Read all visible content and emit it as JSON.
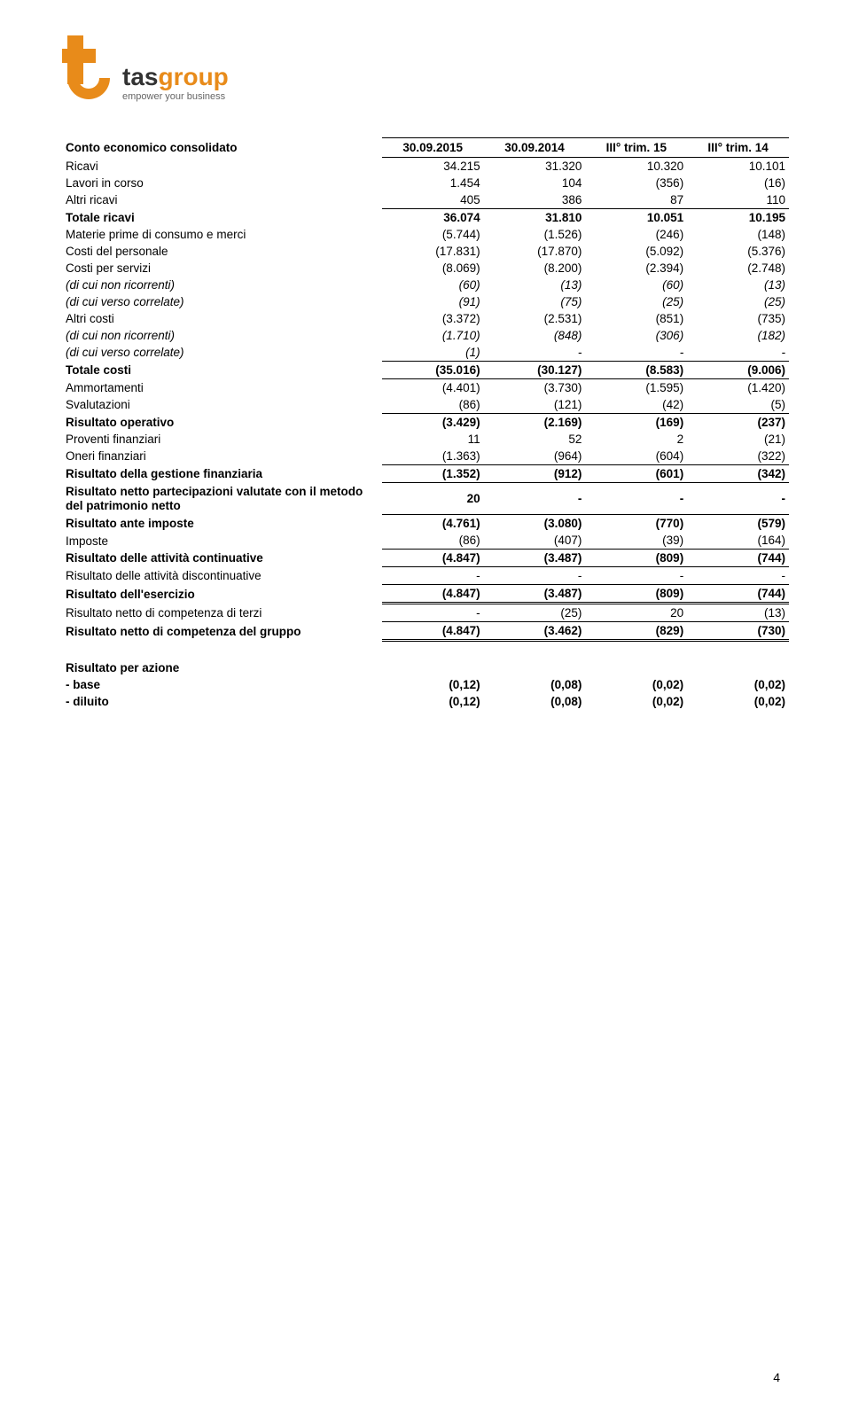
{
  "logo": {
    "name_prefix": "tas",
    "name_suffix": "group",
    "tagline": "empower your business"
  },
  "columns": [
    "30.09.2015",
    "30.09.2014",
    "III° trim. 15",
    "III° trim. 14"
  ],
  "title": "Conto economico consolidato",
  "rows": [
    {
      "label": "Ricavi",
      "v": [
        "34.215",
        "31.320",
        "10.320",
        "10.101"
      ],
      "cls": ""
    },
    {
      "label": "Lavori in corso",
      "v": [
        "1.454",
        "104",
        "(356)",
        "(16)"
      ],
      "cls": ""
    },
    {
      "label": "Altri ricavi",
      "v": [
        "405",
        "386",
        "87",
        "110"
      ],
      "cls": "u1"
    },
    {
      "label": "Totale ricavi",
      "v": [
        "36.074",
        "31.810",
        "10.051",
        "10.195"
      ],
      "cls": "bold"
    },
    {
      "label": "Materie prime di consumo e merci",
      "v": [
        "(5.744)",
        "(1.526)",
        "(246)",
        "(148)"
      ],
      "cls": ""
    },
    {
      "label": "Costi del personale",
      "v": [
        "(17.831)",
        "(17.870)",
        "(5.092)",
        "(5.376)"
      ],
      "cls": ""
    },
    {
      "label": "Costi per servizi",
      "v": [
        "(8.069)",
        "(8.200)",
        "(2.394)",
        "(2.748)"
      ],
      "cls": ""
    },
    {
      "label": "(di cui non ricorrenti)",
      "v": [
        "(60)",
        "(13)",
        "(60)",
        "(13)"
      ],
      "cls": "italic"
    },
    {
      "label": "(di cui verso correlate)",
      "v": [
        "(91)",
        "(75)",
        "(25)",
        "(25)"
      ],
      "cls": "italic"
    },
    {
      "label": "Altri costi",
      "v": [
        "(3.372)",
        "(2.531)",
        "(851)",
        "(735)"
      ],
      "cls": ""
    },
    {
      "label": "(di cui non ricorrenti)",
      "v": [
        "(1.710)",
        "(848)",
        "(306)",
        "(182)"
      ],
      "cls": "italic"
    },
    {
      "label": "(di cui verso correlate)",
      "v": [
        "(1)",
        "-",
        "-",
        "-"
      ],
      "cls": "italic u1"
    },
    {
      "label": "Totale costi",
      "v": [
        "(35.016)",
        "(30.127)",
        "(8.583)",
        "(9.006)"
      ],
      "cls": "bold u1"
    },
    {
      "label": "Ammortamenti",
      "v": [
        "(4.401)",
        "(3.730)",
        "(1.595)",
        "(1.420)"
      ],
      "cls": ""
    },
    {
      "label": "Svalutazioni",
      "v": [
        "(86)",
        "(121)",
        "(42)",
        "(5)"
      ],
      "cls": "u1"
    },
    {
      "label": "Risultato operativo",
      "v": [
        "(3.429)",
        "(2.169)",
        "(169)",
        "(237)"
      ],
      "cls": "bold"
    },
    {
      "label": "Proventi finanziari",
      "v": [
        "11",
        "52",
        "2",
        "(21)"
      ],
      "cls": ""
    },
    {
      "label": "Oneri finanziari",
      "v": [
        "(1.363)",
        "(964)",
        "(604)",
        "(322)"
      ],
      "cls": "u1"
    },
    {
      "label": "Risultato della gestione finanziaria",
      "v": [
        "(1.352)",
        "(912)",
        "(601)",
        "(342)"
      ],
      "cls": "bold u1"
    },
    {
      "label": "Risultato netto partecipazioni valutate con il metodo del patrimonio netto",
      "v": [
        "20",
        "-",
        "-",
        "-"
      ],
      "cls": "bold u1"
    },
    {
      "label": "Risultato ante imposte",
      "v": [
        "(4.761)",
        "(3.080)",
        "(770)",
        "(579)"
      ],
      "cls": "bold"
    },
    {
      "label": "Imposte",
      "v": [
        "(86)",
        "(407)",
        "(39)",
        "(164)"
      ],
      "cls": "u1"
    },
    {
      "label": "Risultato delle attività continuative",
      "v": [
        "(4.847)",
        "(3.487)",
        "(809)",
        "(744)"
      ],
      "cls": "bold u1"
    },
    {
      "label": "Risultato delle attività discontinuative",
      "v": [
        "-",
        "-",
        "-",
        "-"
      ],
      "cls": "u1"
    },
    {
      "label": "Risultato dell'esercizio",
      "v": [
        "(4.847)",
        "(3.487)",
        "(809)",
        "(744)"
      ],
      "cls": "bold u-dbl"
    },
    {
      "label": "Risultato netto di competenza di terzi",
      "v": [
        "-",
        "(25)",
        "20",
        "(13)"
      ],
      "cls": "u1"
    },
    {
      "label": "Risultato netto di competenza del gruppo",
      "v": [
        "(4.847)",
        "(3.462)",
        "(829)",
        "(730)"
      ],
      "cls": "bold u-dbl"
    }
  ],
  "eps": {
    "title": "Risultato per azione",
    "rows": [
      {
        "label": "- base",
        "v": [
          "(0,12)",
          "(0,08)",
          "(0,02)",
          "(0,02)"
        ]
      },
      {
        "label": "- diluito",
        "v": [
          "(0,12)",
          "(0,08)",
          "(0,02)",
          "(0,02)"
        ]
      }
    ]
  },
  "page_number": "4"
}
